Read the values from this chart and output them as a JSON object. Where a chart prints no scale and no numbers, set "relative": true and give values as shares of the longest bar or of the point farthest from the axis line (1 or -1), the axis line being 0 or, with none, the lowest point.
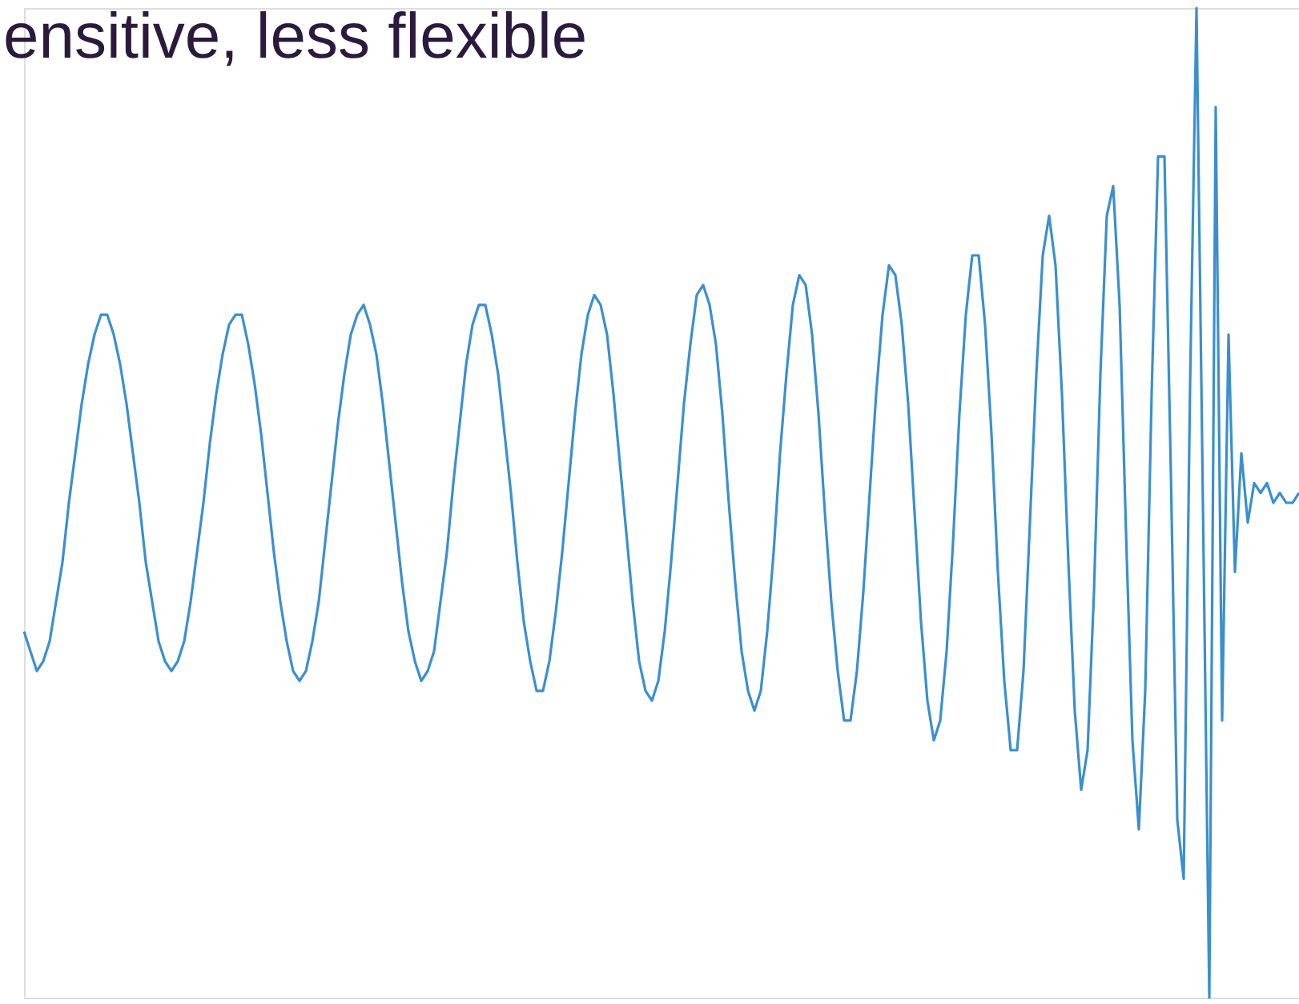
{
  "chart_data": {
    "type": "line",
    "title": "ensitive, less flexible",
    "relative": true,
    "tick_labels": false,
    "categories": [
      null,
      null,
      null,
      null,
      null,
      null,
      null,
      null,
      null,
      null,
      null,
      null,
      null,
      null,
      null,
      null,
      null,
      null,
      null,
      null,
      null,
      null,
      null,
      null,
      null,
      null,
      null,
      null,
      null,
      null,
      null,
      null,
      null,
      null,
      null,
      null,
      null,
      null,
      null,
      null,
      null,
      null,
      null,
      null,
      null,
      null,
      null,
      null,
      null,
      null,
      null,
      null,
      null,
      null,
      null,
      null,
      null,
      null,
      null,
      null,
      null,
      null,
      null,
      null,
      null,
      null,
      null,
      null,
      null,
      null,
      null,
      null,
      null,
      null,
      null,
      null,
      null,
      null,
      null,
      null,
      null,
      null,
      null,
      null,
      null,
      null,
      null,
      null,
      null,
      null,
      null,
      null,
      null,
      null,
      null,
      null,
      null,
      null,
      null,
      null,
      null,
      null,
      null,
      null,
      null,
      null,
      null,
      null,
      null,
      null,
      null,
      null,
      null,
      null,
      null,
      null,
      null,
      null,
      null,
      null,
      null,
      null,
      null,
      null,
      null,
      null,
      null,
      null,
      null,
      null,
      null,
      null,
      null,
      null,
      null,
      null,
      null,
      null,
      null,
      null,
      null,
      null,
      null,
      null,
      null,
      null,
      null,
      null,
      null,
      null,
      null,
      null,
      null,
      null,
      null,
      null,
      null,
      null,
      null,
      null,
      null,
      null,
      null,
      null,
      null,
      null,
      null,
      null,
      null,
      null,
      null,
      null,
      null,
      null,
      null,
      null,
      null,
      null,
      null,
      null,
      null,
      null,
      null,
      null,
      null,
      null,
      null,
      null,
      null,
      null,
      null,
      null,
      null,
      null,
      null,
      null,
      null,
      null,
      null,
      null
    ],
    "series": [
      {
        "color": "#3a8fd0",
        "values": [
          0.37,
          0.35,
          0.33,
          0.34,
          0.36,
          0.4,
          0.44,
          0.5,
          0.55,
          0.6,
          0.64,
          0.67,
          0.69,
          0.69,
          0.67,
          0.64,
          0.6,
          0.55,
          0.5,
          0.44,
          0.4,
          0.36,
          0.34,
          0.33,
          0.34,
          0.36,
          0.4,
          0.45,
          0.5,
          0.56,
          0.61,
          0.65,
          0.68,
          0.69,
          0.69,
          0.66,
          0.62,
          0.57,
          0.51,
          0.45,
          0.4,
          0.36,
          0.33,
          0.32,
          0.33,
          0.36,
          0.4,
          0.46,
          0.52,
          0.58,
          0.63,
          0.67,
          0.69,
          0.7,
          0.68,
          0.65,
          0.6,
          0.54,
          0.48,
          0.42,
          0.37,
          0.34,
          0.32,
          0.33,
          0.35,
          0.4,
          0.45,
          0.52,
          0.58,
          0.64,
          0.68,
          0.7,
          0.7,
          0.67,
          0.63,
          0.57,
          0.51,
          0.44,
          0.38,
          0.34,
          0.31,
          0.31,
          0.34,
          0.39,
          0.45,
          0.52,
          0.59,
          0.65,
          0.69,
          0.71,
          0.7,
          0.67,
          0.61,
          0.54,
          0.47,
          0.4,
          0.34,
          0.31,
          0.3,
          0.32,
          0.37,
          0.44,
          0.52,
          0.6,
          0.66,
          0.71,
          0.72,
          0.7,
          0.66,
          0.59,
          0.5,
          0.42,
          0.35,
          0.31,
          0.29,
          0.31,
          0.37,
          0.45,
          0.55,
          0.63,
          0.7,
          0.73,
          0.72,
          0.67,
          0.59,
          0.49,
          0.4,
          0.33,
          0.28,
          0.28,
          0.33,
          0.41,
          0.51,
          0.61,
          0.69,
          0.74,
          0.73,
          0.68,
          0.6,
          0.49,
          0.38,
          0.3,
          0.26,
          0.28,
          0.35,
          0.46,
          0.59,
          0.69,
          0.75,
          0.75,
          0.68,
          0.57,
          0.43,
          0.32,
          0.25,
          0.25,
          0.33,
          0.48,
          0.63,
          0.75,
          0.79,
          0.74,
          0.61,
          0.44,
          0.29,
          0.21,
          0.25,
          0.41,
          0.63,
          0.79,
          0.82,
          0.7,
          0.47,
          0.26,
          0.17,
          0.31,
          0.61,
          0.85,
          0.85,
          0.53,
          0.18,
          0.12,
          0.62,
          1,
          0.5,
          0,
          0.9,
          0.28,
          0.67,
          0.43,
          0.55,
          0.48,
          0.52,
          0.51,
          0.52,
          0.5,
          0.51,
          0.5,
          0.5,
          0.51
        ]
      }
    ]
  }
}
